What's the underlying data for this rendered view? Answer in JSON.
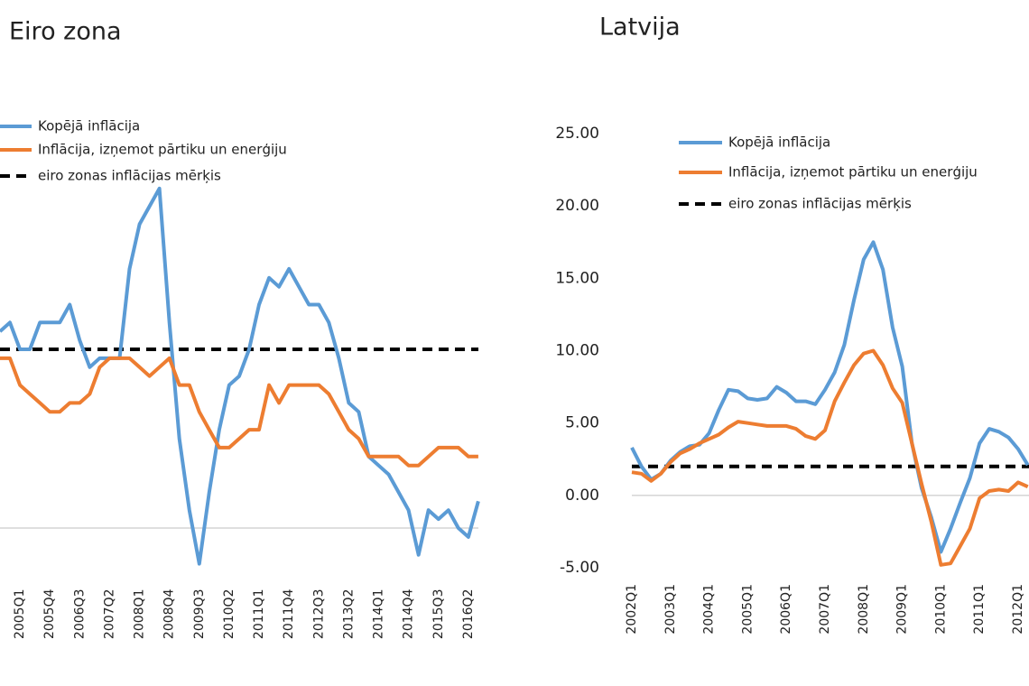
{
  "chart_data": [
    {
      "type": "line",
      "title": "Eiro zona",
      "categories": [
        null,
        null,
        "2005Q1",
        null,
        null,
        "2005Q4",
        null,
        null,
        "2006Q3",
        null,
        null,
        "2007Q2",
        null,
        null,
        "2008Q1",
        null,
        null,
        "2008Q4",
        null,
        null,
        "2009Q3",
        null,
        null,
        "2010Q2",
        null,
        null,
        "2011Q1",
        null,
        null,
        "2011Q4",
        null,
        null,
        "2012Q3",
        null,
        null,
        "2013Q2",
        null,
        null,
        "2014Q1",
        null,
        null,
        "2014Q4",
        null,
        null,
        "2015Q3",
        null,
        null,
        "2016Q2",
        null
      ],
      "series": [
        {
          "name": "Kopējā inflācija",
          "color": "#5b9bd5",
          "values": [
            2.2,
            2.3,
            2.0,
            2.0,
            2.3,
            2.3,
            2.3,
            2.5,
            2.1,
            1.8,
            1.9,
            1.9,
            1.9,
            2.9,
            3.4,
            3.6,
            3.8,
            2.3,
            1.0,
            0.2,
            -0.4,
            0.4,
            1.1,
            1.6,
            1.7,
            2.0,
            2.5,
            2.8,
            2.7,
            2.9,
            2.7,
            2.5,
            2.5,
            2.3,
            1.9,
            1.4,
            1.3,
            0.8,
            0.7,
            0.6,
            0.4,
            0.2,
            -0.3,
            0.2,
            0.1,
            0.2,
            0.0,
            -0.1,
            0.3
          ]
        },
        {
          "name": "Inflācija,  izņemot  pārtiku un enerģiju",
          "color": "#ed7d31",
          "values": [
            1.9,
            1.9,
            1.6,
            1.5,
            1.4,
            1.3,
            1.3,
            1.4,
            1.4,
            1.5,
            1.8,
            1.9,
            1.9,
            1.9,
            1.8,
            1.7,
            1.8,
            1.9,
            1.6,
            1.6,
            1.3,
            1.1,
            0.9,
            0.9,
            1.0,
            1.1,
            1.1,
            1.6,
            1.4,
            1.6,
            1.6,
            1.6,
            1.6,
            1.5,
            1.3,
            1.1,
            1.0,
            0.8,
            0.8,
            0.8,
            0.8,
            0.7,
            0.7,
            0.8,
            0.9,
            0.9,
            0.9,
            0.8,
            0.8
          ]
        }
      ],
      "target": {
        "name": "eiro zonas  inflācijas   mērķis",
        "value": 2,
        "color": "#000000"
      },
      "ylim": [
        -0.5,
        4.5
      ]
    },
    {
      "type": "line",
      "title": "Latvija",
      "categories": [
        "2002Q1",
        null,
        null,
        null,
        "2003Q1",
        null,
        null,
        null,
        "2004Q1",
        null,
        null,
        null,
        "2005Q1",
        null,
        null,
        null,
        "2006Q1",
        null,
        null,
        null,
        "2007Q1",
        null,
        null,
        null,
        "2008Q1",
        null,
        null,
        null,
        "2009Q1",
        null,
        null,
        null,
        "2010Q1",
        null,
        null,
        null,
        "2011Q1",
        null,
        null,
        null,
        "2012Q1",
        null
      ],
      "series": [
        {
          "name": "Kopējā inflācija",
          "color": "#5b9bd5",
          "values": [
            3.3,
            2.0,
            1.1,
            1.5,
            2.4,
            3.0,
            3.4,
            3.5,
            4.3,
            5.9,
            7.3,
            7.2,
            6.7,
            6.6,
            6.7,
            7.5,
            7.1,
            6.5,
            6.5,
            6.3,
            7.3,
            8.5,
            10.4,
            13.5,
            16.3,
            17.5,
            15.6,
            11.6,
            8.9,
            3.6,
            0.5,
            -1.5,
            -3.9,
            -2.3,
            -0.5,
            1.2,
            3.6,
            4.6,
            4.4,
            4.0,
            3.2,
            2.1
          ]
        },
        {
          "name": "Inflācija,  izņemot  pārtiku  un enerģiju",
          "color": "#ed7d31",
          "values": [
            1.6,
            1.5,
            1.0,
            1.5,
            2.3,
            2.9,
            3.2,
            3.6,
            3.9,
            4.2,
            4.7,
            5.1,
            5.0,
            4.9,
            4.8,
            4.8,
            4.8,
            4.6,
            4.1,
            3.9,
            4.5,
            6.5,
            7.8,
            9.0,
            9.8,
            10.0,
            9.0,
            7.4,
            6.4,
            3.6,
            0.8,
            -1.8,
            -4.8,
            -4.7,
            -3.5,
            -2.3,
            -0.2,
            0.3,
            0.4,
            0.3,
            0.9,
            0.6
          ]
        }
      ],
      "target": {
        "name": "eiro zonas  inflācijas   mērķis",
        "value": 2,
        "color": "#000000"
      },
      "ylim": [
        -5,
        25
      ],
      "yticks": [
        {
          "value": -5,
          "label": "-5.00"
        },
        {
          "value": 0,
          "label": "0.00"
        },
        {
          "value": 5,
          "label": "5.00"
        },
        {
          "value": 10,
          "label": "10.00"
        },
        {
          "value": 15,
          "label": "15.00"
        },
        {
          "value": 20,
          "label": "20.00"
        },
        {
          "value": 25,
          "label": "25.00"
        }
      ]
    }
  ]
}
